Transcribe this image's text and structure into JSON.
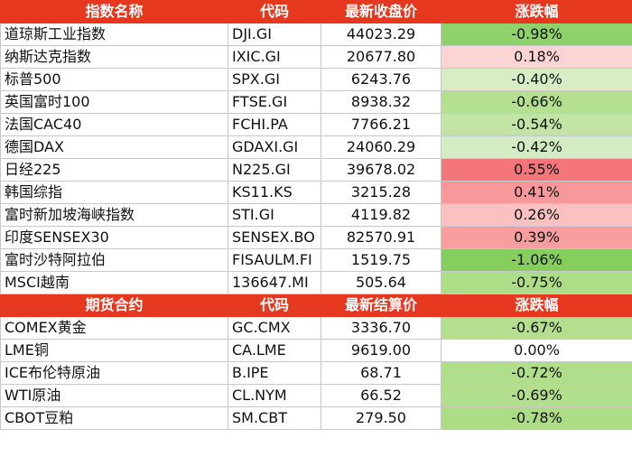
{
  "sections": [
    {
      "header": [
        "指数名称",
        "代码",
        "最新收盘价",
        "涨跌幅"
      ],
      "rows": [
        [
          "道琼斯工业指数",
          "DJI.GI",
          "44023.29",
          "-0.98%"
        ],
        [
          "纳斯达克指数",
          "IXIC.GI",
          "20677.80",
          "0.18%"
        ],
        [
          "标普500",
          "SPX.GI",
          "6243.76",
          "-0.40%"
        ],
        [
          "英国富时100",
          "FTSE.GI",
          "8938.32",
          "-0.66%"
        ],
        [
          "法国CAC40",
          "FCHI.PA",
          "7766.21",
          "-0.54%"
        ],
        [
          "德国DAX",
          "GDAXI.GI",
          "24060.29",
          "-0.42%"
        ],
        [
          "日经225",
          "N225.GI",
          "39678.02",
          "0.55%"
        ],
        [
          "韩国综指",
          "KS11.KS",
          "3215.28",
          "0.41%"
        ],
        [
          "富时新加坡海峡指数",
          "STI.GI",
          "4119.82",
          "0.26%"
        ],
        [
          "印度SENSEX30",
          "SENSEX.BO",
          "82570.91",
          "0.39%"
        ],
        [
          "富时沙特阿拉伯",
          "FISAULM.FI",
          "1519.75",
          "-1.06%"
        ],
        [
          "MSCI越南",
          "136647.MI",
          "505.64",
          "-0.75%"
        ]
      ],
      "colors": [
        "#8fd16a",
        "#fcd4d4",
        "#d6edc6",
        "#b5e090",
        "#c2e5a5",
        "#d4ecc3",
        "#f4767a",
        "#f7999b",
        "#fbc1c1",
        "#f89e9f",
        "#86cf5e",
        "#aedd88"
      ]
    },
    {
      "header": [
        "期货合约",
        "代码",
        "最新结算价",
        "涨跌幅"
      ],
      "rows": [
        [
          "COMEX黄金",
          "GC.CMX",
          "3336.70",
          "-0.67%"
        ],
        [
          "LME铜",
          "CA.LME",
          "9619.00",
          "0.00%"
        ],
        [
          "ICE布伦特原油",
          "B.IPE",
          "68.71",
          "-0.72%"
        ],
        [
          "WTI原油",
          "CL.NYM",
          "66.52",
          "-0.69%"
        ],
        [
          "CBOT豆粕",
          "SM.CBT",
          "279.50",
          "-0.78%"
        ]
      ],
      "colors": [
        "#b3df8e",
        "#ffffff",
        "#b0de8b",
        "#b2df8d",
        "#acdc85"
      ]
    }
  ]
}
